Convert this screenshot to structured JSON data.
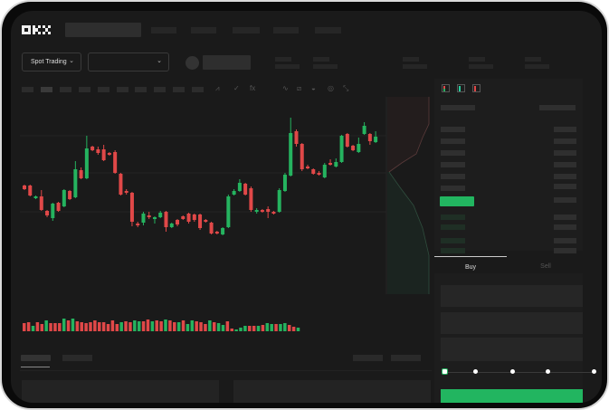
{
  "header": {
    "logo": "OKX"
  },
  "market": {
    "mode_select": "Spot Trading"
  },
  "order_form": {
    "buy_tab": "Buy",
    "sell_tab": "Sell",
    "slider_level_percent": 0
  },
  "colors": {
    "up": "#25b35f",
    "down": "#e04848",
    "background": "#1a1a1a",
    "accent_button": "#22b560"
  },
  "toolbar_icons": [
    "line-chart-icon",
    "indicator-icon",
    "fx-icon",
    "trend-icon",
    "ruler-icon",
    "magnet-icon",
    "target-icon",
    "fullscreen-icon"
  ],
  "orderbook_icons": [
    "both-sides-icon",
    "bids-only-icon",
    "asks-only-icon"
  ],
  "chart_data": {
    "type": "candlestick",
    "columns": [
      "open",
      "close",
      "high",
      "low"
    ],
    "candles": [
      [
        97,
        93,
        98,
        92
      ],
      [
        97,
        86,
        98,
        85
      ],
      [
        83,
        85,
        86,
        82
      ],
      [
        85,
        70,
        92,
        69
      ],
      [
        69,
        64,
        70,
        62
      ],
      [
        61,
        77,
        78,
        58
      ],
      [
        78,
        69,
        79,
        68
      ],
      [
        74,
        92,
        93,
        73
      ],
      [
        91,
        82,
        92,
        81
      ],
      [
        84,
        115,
        124,
        83
      ],
      [
        114,
        105,
        117,
        104
      ],
      [
        105,
        138,
        152,
        104
      ],
      [
        140,
        136,
        141,
        135
      ],
      [
        137,
        133,
        140,
        131
      ],
      [
        137,
        125,
        142,
        124
      ],
      [
        133,
        131,
        134,
        130
      ],
      [
        134,
        111,
        136,
        110
      ],
      [
        110,
        87,
        111,
        86
      ],
      [
        91,
        89,
        93,
        87
      ],
      [
        89,
        57,
        90,
        52
      ],
      [
        55,
        53,
        57,
        51
      ],
      [
        56,
        66,
        68,
        53
      ],
      [
        64,
        62,
        68,
        60
      ],
      [
        60,
        62,
        63,
        55
      ],
      [
        62,
        67,
        69,
        61
      ],
      [
        68,
        51,
        69,
        46
      ],
      [
        51,
        55,
        56,
        50
      ],
      [
        59,
        54,
        60,
        52
      ],
      [
        63,
        60,
        64,
        59
      ],
      [
        66,
        57,
        67,
        55
      ],
      [
        65,
        59,
        66,
        57
      ],
      [
        65,
        50,
        66,
        48
      ],
      [
        59,
        57,
        60,
        56
      ],
      [
        56,
        44,
        57,
        43
      ],
      [
        46,
        44,
        47,
        43
      ],
      [
        43,
        50,
        51,
        42
      ],
      [
        51,
        85,
        87,
        50
      ],
      [
        87,
        91,
        93,
        86
      ],
      [
        91,
        100,
        104,
        90
      ],
      [
        99,
        87,
        100,
        86
      ],
      [
        94,
        70,
        96,
        68
      ],
      [
        68,
        70,
        72,
        66
      ],
      [
        70,
        68,
        71,
        67
      ],
      [
        71,
        68,
        74,
        61
      ],
      [
        68,
        66,
        69,
        65
      ],
      [
        68,
        92,
        94,
        67
      ],
      [
        91,
        109,
        111,
        90
      ],
      [
        108,
        155,
        172,
        107
      ],
      [
        157,
        143,
        159,
        140
      ],
      [
        143,
        115,
        144,
        113
      ],
      [
        118,
        116,
        120,
        115
      ],
      [
        115,
        110,
        116,
        109
      ],
      [
        111,
        109,
        113,
        108
      ],
      [
        106,
        120,
        122,
        105
      ],
      [
        122,
        120,
        126,
        119
      ],
      [
        118,
        123,
        127,
        117
      ],
      [
        123,
        152,
        153,
        122
      ],
      [
        154,
        140,
        155,
        139
      ],
      [
        141,
        136,
        142,
        135
      ],
      [
        134,
        143,
        150,
        133
      ],
      [
        154,
        163,
        167,
        153
      ],
      [
        154,
        146,
        155,
        142
      ],
      [
        145,
        151,
        157,
        144
      ]
    ],
    "volume": [
      9,
      10,
      6,
      10,
      8,
      12,
      9,
      9,
      9,
      14,
      12,
      14,
      11,
      10,
      9,
      10,
      12,
      10,
      10,
      8,
      12,
      8,
      10,
      11,
      10,
      12,
      11,
      11,
      13,
      11,
      12,
      11,
      13,
      12,
      10,
      10,
      12,
      8,
      12,
      11,
      10,
      8,
      12,
      10,
      9,
      7,
      11,
      3,
      2,
      4,
      6,
      6,
      6,
      6,
      7,
      9,
      8,
      8,
      8,
      9,
      7,
      5,
      4
    ],
    "volume_colors": [
      "down",
      "down",
      "up",
      "down",
      "down",
      "up",
      "down",
      "down",
      "down",
      "up",
      "down",
      "up",
      "down",
      "down",
      "down",
      "down",
      "down",
      "down",
      "down",
      "down",
      "down",
      "down",
      "up",
      "down",
      "down",
      "up",
      "up",
      "down",
      "down",
      "up",
      "down",
      "down",
      "up",
      "down",
      "down",
      "up",
      "down",
      "up",
      "up",
      "down",
      "down",
      "down",
      "up",
      "down",
      "up",
      "up",
      "down",
      "down",
      "up",
      "up",
      "up",
      "down",
      "down",
      "up",
      "down",
      "up",
      "up",
      "down",
      "up",
      "up",
      "down",
      "down",
      "up"
    ],
    "grid": true
  }
}
